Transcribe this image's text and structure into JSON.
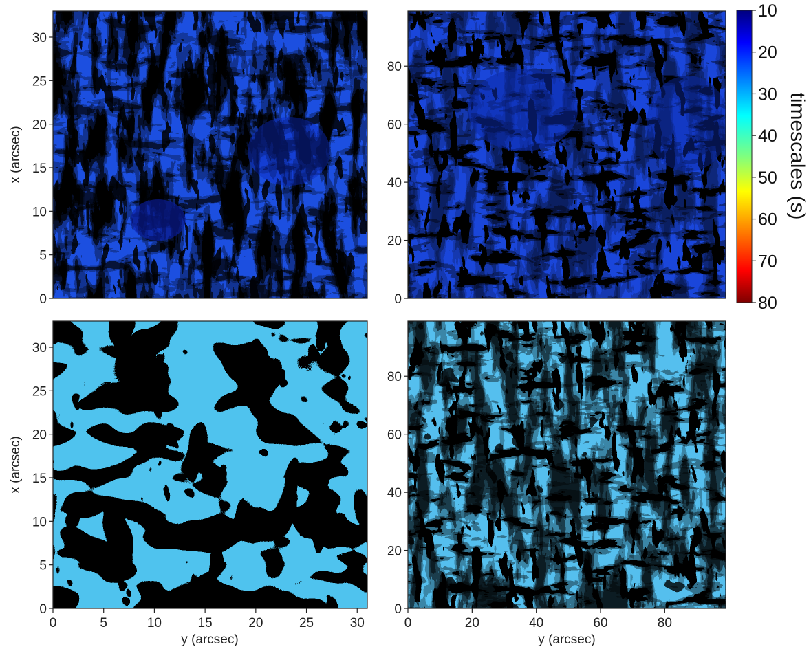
{
  "chart_data": [
    {
      "type": "heatmap",
      "panel": "top-left",
      "title": "",
      "xlabel": "",
      "ylabel": "x (arcsec)",
      "xlim": [
        0,
        31
      ],
      "ylim": [
        0,
        33
      ],
      "xticks": [],
      "yticks": [
        0,
        5,
        10,
        15,
        20,
        25,
        30
      ],
      "color_range": [
        10,
        80
      ]
    },
    {
      "type": "heatmap",
      "panel": "top-right",
      "title": "",
      "xlabel": "",
      "ylabel": "",
      "xlim": [
        0,
        99
      ],
      "ylim": [
        0,
        99
      ],
      "xticks": [],
      "yticks": [
        0,
        20,
        40,
        60,
        80
      ],
      "color_range": [
        10,
        80
      ]
    },
    {
      "type": "heatmap",
      "panel": "bottom-left",
      "title": "",
      "xlabel": "y (arcsec)",
      "ylabel": "x (arcsec)",
      "xlim": [
        0,
        31
      ],
      "ylim": [
        0,
        33
      ],
      "xticks": [
        0,
        5,
        10,
        15,
        20,
        25,
        30
      ],
      "yticks": [
        0,
        5,
        10,
        15,
        20,
        25,
        30
      ],
      "color_range": [
        10,
        80
      ]
    },
    {
      "type": "heatmap",
      "panel": "bottom-right",
      "title": "",
      "xlabel": "y (arcsec)",
      "ylabel": "",
      "xlim": [
        0,
        99
      ],
      "ylim": [
        0,
        99
      ],
      "xticks": [
        0,
        20,
        40,
        60,
        80
      ],
      "yticks": [
        0,
        20,
        40,
        60,
        80
      ],
      "color_range": [
        10,
        80
      ]
    }
  ],
  "colorbar": {
    "label": "timescales (s)",
    "ticks": [
      10,
      20,
      30,
      40,
      50,
      60,
      70,
      80
    ],
    "colormap": "jet",
    "reversed": true
  }
}
